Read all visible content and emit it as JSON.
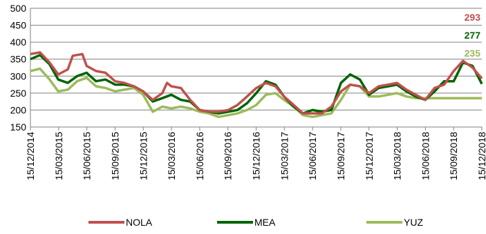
{
  "chart_data": {
    "type": "line",
    "ylim": [
      150,
      500
    ],
    "yticks": [
      150,
      200,
      250,
      300,
      350,
      400,
      450,
      500
    ],
    "xlim": [
      "2014-12-15",
      "2018-12-15"
    ],
    "xtick_labels": [
      "15/12/2014",
      "15/03/2015",
      "15/06/2015",
      "15/09/2015",
      "15/12/2015",
      "15/03/2016",
      "15/06/2016",
      "15/09/2016",
      "15/12/2016",
      "15/03/2017",
      "15/06/2017",
      "15/09/2017",
      "15/12/2017",
      "15/03/2018",
      "15/06/2018",
      "15/09/2018",
      "15/12/2018"
    ],
    "grid": "horizontal",
    "legend_position": "bottom",
    "series": [
      {
        "name": "NOLA",
        "color": "#c0504d",
        "end_label": "293",
        "points": [
          [
            "2014-12-15",
            365
          ],
          [
            "2015-01-15",
            370
          ],
          [
            "2015-02-15",
            340
          ],
          [
            "2015-03-15",
            305
          ],
          [
            "2015-04-15",
            320
          ],
          [
            "2015-05-01",
            360
          ],
          [
            "2015-06-01",
            365
          ],
          [
            "2015-06-15",
            330
          ],
          [
            "2015-07-15",
            315
          ],
          [
            "2015-08-15",
            310
          ],
          [
            "2015-09-15",
            285
          ],
          [
            "2015-10-15",
            280
          ],
          [
            "2015-11-15",
            270
          ],
          [
            "2015-12-15",
            255
          ],
          [
            "2016-01-15",
            230
          ],
          [
            "2016-02-15",
            250
          ],
          [
            "2016-03-01",
            280
          ],
          [
            "2016-03-15",
            270
          ],
          [
            "2016-04-15",
            265
          ],
          [
            "2016-05-15",
            230
          ],
          [
            "2016-06-15",
            200
          ],
          [
            "2016-07-15",
            195
          ],
          [
            "2016-08-15",
            195
          ],
          [
            "2016-09-15",
            200
          ],
          [
            "2016-10-15",
            215
          ],
          [
            "2016-11-15",
            240
          ],
          [
            "2016-12-15",
            265
          ],
          [
            "2017-01-15",
            280
          ],
          [
            "2017-02-15",
            270
          ],
          [
            "2017-03-15",
            240
          ],
          [
            "2017-04-15",
            215
          ],
          [
            "2017-05-15",
            190
          ],
          [
            "2017-06-15",
            190
          ],
          [
            "2017-07-15",
            190
          ],
          [
            "2017-08-15",
            210
          ],
          [
            "2017-09-15",
            255
          ],
          [
            "2017-10-15",
            275
          ],
          [
            "2017-11-15",
            270
          ],
          [
            "2017-12-15",
            250
          ],
          [
            "2018-01-15",
            270
          ],
          [
            "2018-02-15",
            275
          ],
          [
            "2018-03-15",
            280
          ],
          [
            "2018-04-15",
            260
          ],
          [
            "2018-05-15",
            245
          ],
          [
            "2018-06-15",
            230
          ],
          [
            "2018-07-15",
            265
          ],
          [
            "2018-08-15",
            275
          ],
          [
            "2018-09-15",
            315
          ],
          [
            "2018-10-15",
            345
          ],
          [
            "2018-11-15",
            325
          ],
          [
            "2018-12-15",
            293
          ]
        ]
      },
      {
        "name": "MEA",
        "color": "#006400",
        "end_label": "277",
        "points": [
          [
            "2014-12-15",
            350
          ],
          [
            "2015-01-15",
            362
          ],
          [
            "2015-02-15",
            335
          ],
          [
            "2015-03-15",
            290
          ],
          [
            "2015-04-15",
            280
          ],
          [
            "2015-05-15",
            300
          ],
          [
            "2015-06-15",
            310
          ],
          [
            "2015-07-15",
            285
          ],
          [
            "2015-08-15",
            290
          ],
          [
            "2015-09-15",
            275
          ],
          [
            "2015-10-15",
            275
          ],
          [
            "2015-11-15",
            270
          ],
          [
            "2015-12-15",
            255
          ],
          [
            "2016-01-15",
            225
          ],
          [
            "2016-02-15",
            235
          ],
          [
            "2016-03-15",
            245
          ],
          [
            "2016-04-15",
            230
          ],
          [
            "2016-05-15",
            225
          ],
          [
            "2016-06-15",
            200
          ],
          [
            "2016-07-15",
            195
          ],
          [
            "2016-08-15",
            190
          ],
          [
            "2016-09-15",
            195
          ],
          [
            "2016-10-15",
            200
          ],
          [
            "2016-11-15",
            220
          ],
          [
            "2016-12-15",
            250
          ],
          [
            "2017-01-15",
            285
          ],
          [
            "2017-02-15",
            275
          ],
          [
            "2017-03-15",
            240
          ],
          [
            "2017-04-15",
            210
          ],
          [
            "2017-05-15",
            190
          ],
          [
            "2017-06-15",
            200
          ],
          [
            "2017-07-15",
            195
          ],
          [
            "2017-08-15",
            200
          ],
          [
            "2017-09-15",
            280
          ],
          [
            "2017-10-15",
            305
          ],
          [
            "2017-11-15",
            290
          ],
          [
            "2017-12-15",
            245
          ],
          [
            "2018-01-15",
            265
          ],
          [
            "2018-02-15",
            270
          ],
          [
            "2018-03-15",
            275
          ],
          [
            "2018-04-15",
            255
          ],
          [
            "2018-05-15",
            240
          ],
          [
            "2018-06-15",
            230
          ],
          [
            "2018-07-15",
            255
          ],
          [
            "2018-08-15",
            285
          ],
          [
            "2018-09-15",
            285
          ],
          [
            "2018-10-15",
            340
          ],
          [
            "2018-11-15",
            330
          ],
          [
            "2018-12-15",
            277
          ]
        ]
      },
      {
        "name": "YUZ",
        "color": "#9bbb59",
        "end_label": "235",
        "points": [
          [
            "2014-12-15",
            315
          ],
          [
            "2015-01-15",
            322
          ],
          [
            "2015-02-15",
            290
          ],
          [
            "2015-03-15",
            255
          ],
          [
            "2015-04-15",
            260
          ],
          [
            "2015-05-15",
            285
          ],
          [
            "2015-06-15",
            295
          ],
          [
            "2015-07-15",
            270
          ],
          [
            "2015-08-15",
            265
          ],
          [
            "2015-09-15",
            255
          ],
          [
            "2015-10-15",
            260
          ],
          [
            "2015-11-15",
            265
          ],
          [
            "2015-12-15",
            245
          ],
          [
            "2016-01-15",
            195
          ],
          [
            "2016-02-15",
            210
          ],
          [
            "2016-03-15",
            205
          ],
          [
            "2016-04-15",
            210
          ],
          [
            "2016-05-15",
            205
          ],
          [
            "2016-06-15",
            195
          ],
          [
            "2016-07-15",
            190
          ],
          [
            "2016-08-15",
            180
          ],
          [
            "2016-09-15",
            185
          ],
          [
            "2016-10-15",
            190
          ],
          [
            "2016-11-15",
            200
          ],
          [
            "2016-12-15",
            215
          ],
          [
            "2017-01-15",
            245
          ],
          [
            "2017-02-15",
            250
          ],
          [
            "2017-03-15",
            230
          ],
          [
            "2017-04-15",
            210
          ],
          [
            "2017-05-15",
            185
          ],
          [
            "2017-06-15",
            180
          ],
          [
            "2017-07-15",
            185
          ],
          [
            "2017-08-15",
            190
          ],
          [
            "2017-09-15",
            230
          ],
          [
            "2017-10-15",
            275
          ],
          [
            "2017-11-15",
            270
          ],
          [
            "2017-12-15",
            240
          ],
          [
            "2018-01-15",
            240
          ],
          [
            "2018-02-15",
            245
          ],
          [
            "2018-03-15",
            250
          ],
          [
            "2018-04-15",
            240
          ],
          [
            "2018-05-15",
            235
          ],
          [
            "2018-06-15",
            235
          ],
          [
            "2018-07-15",
            235
          ],
          [
            "2018-08-15",
            235
          ],
          [
            "2018-09-15",
            235
          ],
          [
            "2018-10-15",
            235
          ],
          [
            "2018-11-15",
            235
          ],
          [
            "2018-12-15",
            235
          ]
        ]
      }
    ]
  }
}
